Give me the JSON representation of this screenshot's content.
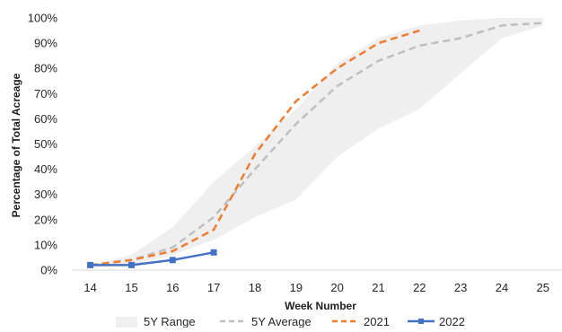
{
  "chart_data": {
    "type": "line",
    "xlabel": "Week Number",
    "ylabel": "Percentage of Total Acreage",
    "x": [
      14,
      15,
      16,
      17,
      18,
      19,
      20,
      21,
      22,
      23,
      24,
      25
    ],
    "ylim": [
      0,
      100
    ],
    "yticks": [
      0,
      10,
      20,
      30,
      40,
      50,
      60,
      70,
      80,
      90,
      100
    ],
    "ytick_labels": [
      "0%",
      "10%",
      "20%",
      "30%",
      "40%",
      "50%",
      "60%",
      "70%",
      "80%",
      "90%",
      "100%"
    ],
    "grid": false,
    "legend_position": "bottom",
    "range": {
      "name": "5Y Range",
      "color": "#efefef",
      "upper": [
        2,
        6,
        17,
        35,
        49,
        64,
        82,
        92,
        97,
        99,
        100,
        100
      ],
      "lower": [
        1,
        2,
        6,
        12,
        21,
        28,
        45,
        56,
        64,
        78,
        92,
        97
      ]
    },
    "series": [
      {
        "name": "5Y Average",
        "color": "#bfbfbf",
        "style": "dashed",
        "marker": "none",
        "x": [
          14,
          15,
          16,
          17,
          18,
          19,
          20,
          21,
          22,
          23,
          24,
          25
        ],
        "values": [
          2,
          4,
          9,
          21,
          40,
          58,
          73,
          83,
          89,
          92,
          97,
          98
        ]
      },
      {
        "name": "2021",
        "color": "#ed7d31",
        "style": "dashed",
        "marker": "none",
        "x": [
          14,
          15,
          16,
          17,
          18,
          19,
          20,
          21,
          22
        ],
        "values": [
          2,
          4,
          7.5,
          16,
          46,
          67,
          80,
          90,
          95
        ]
      },
      {
        "name": "2022",
        "color": "#4472c4",
        "style": "solid",
        "marker": "square",
        "x": [
          14,
          15,
          16,
          17
        ],
        "values": [
          2,
          2,
          4,
          7
        ]
      }
    ]
  }
}
